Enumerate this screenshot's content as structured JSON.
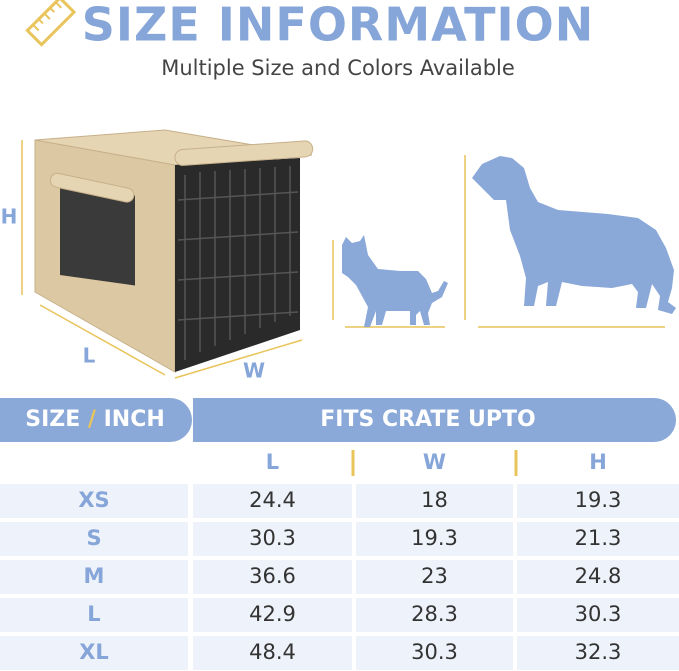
{
  "header": {
    "title": "SIZE INFORMATION",
    "subtitle": "Multiple Size and Colors Available"
  },
  "illustration": {
    "crate_labels": {
      "height": "H",
      "length": "L",
      "width": "W"
    }
  },
  "table": {
    "header": {
      "size_word": "SIZE",
      "slash": "/",
      "unit_word": "INCH",
      "fits": "FITS CRATE UPTO"
    },
    "columns": [
      "L",
      "W",
      "H"
    ],
    "rows": [
      [
        "XS",
        24.4,
        18,
        19.3
      ],
      [
        "S",
        30.3,
        19.3,
        21.3
      ],
      [
        "M",
        36.6,
        23,
        24.8
      ],
      [
        "L",
        42.9,
        28.3,
        30.3
      ],
      [
        "XL",
        48.4,
        30.3,
        32.3
      ]
    ]
  }
}
